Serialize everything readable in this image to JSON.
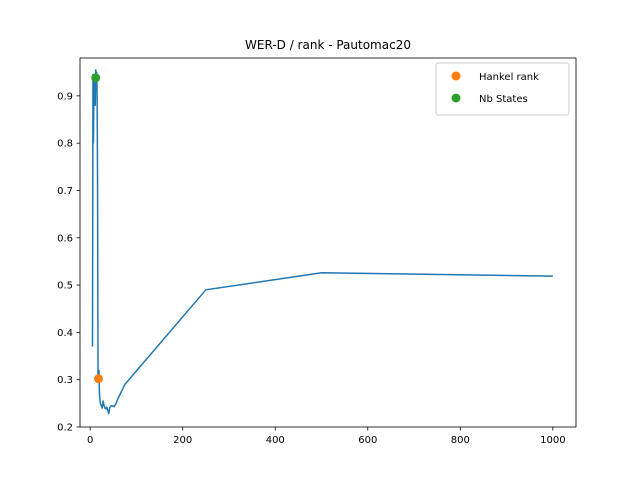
{
  "chart_data": {
    "type": "line",
    "title": "WER-D / rank - Pautomac20",
    "xlabel": "",
    "ylabel": "",
    "xlim": [
      -22,
      1050
    ],
    "ylim": [
      0.2,
      0.98
    ],
    "x_ticks": [
      0,
      200,
      400,
      600,
      800,
      1000
    ],
    "y_ticks": [
      0.2,
      0.3,
      0.4,
      0.5,
      0.6,
      0.7,
      0.8,
      0.9
    ],
    "x_tick_labels": [
      "0",
      "200",
      "400",
      "600",
      "800",
      "1000"
    ],
    "y_tick_labels": [
      "0.2",
      "0.3",
      "0.4",
      "0.5",
      "0.6",
      "0.7",
      "0.8",
      "0.9"
    ],
    "grid": false,
    "legend_position": "top-right",
    "series": [
      {
        "type": "line",
        "color": "#1f77b4",
        "x": [
          5,
          6,
          7,
          8,
          9,
          10,
          11,
          12,
          13,
          14,
          15,
          16,
          17,
          18,
          19,
          20,
          22,
          24,
          26,
          28,
          30,
          32,
          34,
          36,
          38,
          40,
          42,
          45,
          48,
          52,
          56,
          60,
          65,
          70,
          75,
          250,
          500,
          1000
        ],
        "y": [
          0.37,
          0.945,
          0.8,
          0.9,
          0.945,
          0.92,
          0.88,
          0.955,
          0.94,
          0.95,
          0.9,
          0.7,
          0.31,
          0.3,
          0.32,
          0.27,
          0.25,
          0.245,
          0.24,
          0.255,
          0.245,
          0.24,
          0.238,
          0.242,
          0.235,
          0.228,
          0.24,
          0.245,
          0.245,
          0.243,
          0.25,
          0.26,
          0.27,
          0.28,
          0.29,
          0.49,
          0.526,
          0.519
        ]
      },
      {
        "type": "scatter",
        "name": "Hankel rank",
        "color": "#ff7f0e",
        "x": [
          18
        ],
        "y": [
          0.302
        ]
      },
      {
        "type": "scatter",
        "name": "Nb States",
        "color": "#2ca02c",
        "x": [
          12
        ],
        "y": [
          0.938
        ]
      }
    ]
  }
}
